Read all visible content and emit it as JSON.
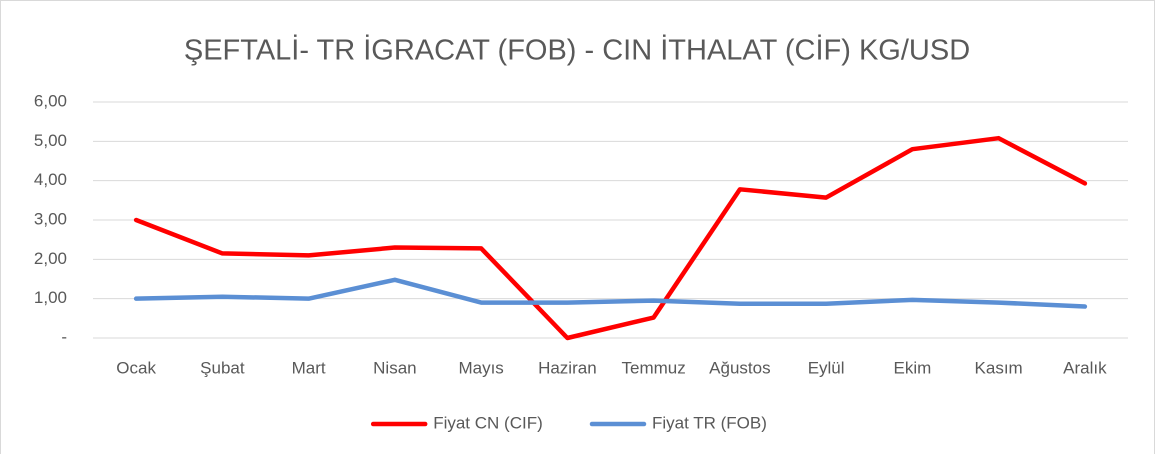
{
  "chart_data": {
    "type": "line",
    "title": "ŞEFTALİ- TR İGRACAT (FOB) - CIN İTHALAT (CİF) KG/USD",
    "categories": [
      "Ocak",
      "Şubat",
      "Mart",
      "Nisan",
      "Mayıs",
      "Haziran",
      "Temmuz",
      "Ağustos",
      "Eylül",
      "Ekim",
      "Kasım",
      "Aralık"
    ],
    "series": [
      {
        "name": "Fiyat CN (CIF)",
        "color": "#ff0000",
        "values": [
          3.0,
          2.15,
          2.1,
          2.3,
          2.28,
          0.0,
          0.52,
          3.78,
          3.57,
          4.8,
          5.08,
          3.93
        ]
      },
      {
        "name": "Fiyat TR (FOB)",
        "color": "#5b8fd4",
        "values": [
          1.0,
          1.05,
          1.0,
          1.48,
          0.9,
          0.9,
          0.95,
          0.87,
          0.87,
          0.97,
          0.9,
          0.8
        ]
      }
    ],
    "ylim": [
      0,
      6
    ],
    "yticks": [
      {
        "value": 0,
        "label": "-"
      },
      {
        "value": 1,
        "label": "1,00"
      },
      {
        "value": 2,
        "label": "2,00"
      },
      {
        "value": 3,
        "label": "3,00"
      },
      {
        "value": 4,
        "label": "4,00"
      },
      {
        "value": 5,
        "label": "5,00"
      },
      {
        "value": 6,
        "label": "6,00"
      }
    ],
    "grid": true,
    "legend": "bottom"
  }
}
